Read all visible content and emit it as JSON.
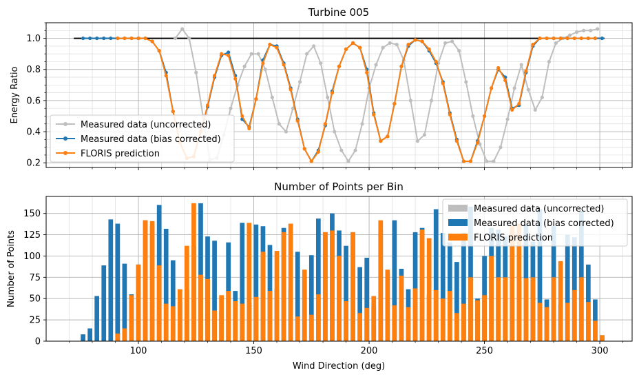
{
  "chart_data": [
    {
      "type": "line",
      "title": "Turbine 005",
      "xlabel": "",
      "ylabel": "Energy Ratio",
      "xlim": [
        60,
        314
      ],
      "ylim": [
        0.17,
        1.1
      ],
      "x_ticks": [
        100,
        150,
        200,
        250,
        300
      ],
      "x_tick_labels": [
        "",
        "",
        "",
        "",
        ""
      ],
      "y_ticks": [
        0.2,
        0.4,
        0.6,
        0.8,
        1.0
      ],
      "y_tick_labels": [
        "0.2",
        "0.4",
        "0.6",
        "0.8",
        "1.0"
      ],
      "grid": true,
      "legend_position": "lower-left",
      "reference_line": {
        "y": 1.0,
        "x_start": 72,
        "x_end": 302,
        "color": "#000000"
      },
      "series": [
        {
          "name": "Measured data (uncorrected)",
          "color": "#bebebe",
          "x": [
            116,
            119,
            122,
            125,
            128,
            131,
            134,
            137,
            140,
            143,
            146,
            149,
            152,
            155,
            158,
            161,
            164,
            167,
            170,
            173,
            176,
            179,
            182,
            185,
            188,
            191,
            194,
            197,
            200,
            203,
            206,
            209,
            212,
            215,
            218,
            221,
            224,
            227,
            230,
            233,
            236,
            239,
            242,
            245,
            248,
            251,
            254,
            257,
            260,
            263,
            266,
            269,
            272,
            275,
            278,
            281,
            284,
            287,
            290,
            293,
            296,
            299
          ],
          "y": [
            1.0,
            1.06,
            1.0,
            0.78,
            0.5,
            0.22,
            0.23,
            0.38,
            0.55,
            0.7,
            0.82,
            0.9,
            0.9,
            0.8,
            0.62,
            0.45,
            0.4,
            0.55,
            0.72,
            0.9,
            0.95,
            0.84,
            0.62,
            0.4,
            0.28,
            0.21,
            0.28,
            0.45,
            0.68,
            0.83,
            0.94,
            0.97,
            0.96,
            0.86,
            0.6,
            0.34,
            0.38,
            0.6,
            0.84,
            0.97,
            0.98,
            0.92,
            0.72,
            0.5,
            0.32,
            0.21,
            0.21,
            0.3,
            0.48,
            0.68,
            0.83,
            0.67,
            0.54,
            0.62,
            0.85,
            0.97,
            1.0,
            1.02,
            1.04,
            1.05,
            1.05,
            1.06
          ]
        },
        {
          "name": "Measured data (bias corrected)",
          "color": "#1f77b4",
          "x": [
            76,
            79,
            82,
            85,
            88,
            91,
            94,
            97,
            100,
            103,
            106,
            109,
            112,
            115,
            118,
            121,
            124,
            127,
            130,
            133,
            136,
            139,
            142,
            145,
            148,
            151,
            154,
            157,
            160,
            163,
            166,
            169,
            172,
            175,
            178,
            181,
            184,
            187,
            190,
            193,
            196,
            199,
            202,
            205,
            208,
            211,
            214,
            217,
            220,
            223,
            226,
            229,
            232,
            235,
            238,
            241,
            244,
            247,
            250,
            253,
            256,
            259,
            262,
            265,
            268,
            271,
            274,
            277,
            280,
            283,
            286,
            289,
            292,
            295,
            298,
            301
          ],
          "y": [
            1.0,
            1.0,
            1.0,
            1.0,
            1.0,
            1.0,
            1.0,
            1.0,
            1.0,
            1.0,
            0.98,
            0.92,
            0.78,
            0.53,
            0.33,
            0.23,
            0.24,
            0.4,
            0.56,
            0.75,
            0.89,
            0.91,
            0.76,
            0.48,
            0.43,
            0.61,
            0.86,
            0.96,
            0.95,
            0.84,
            0.68,
            0.48,
            0.29,
            0.21,
            0.28,
            0.44,
            0.66,
            0.82,
            0.93,
            0.97,
            0.94,
            0.8,
            0.52,
            0.34,
            0.37,
            0.58,
            0.82,
            0.95,
            0.99,
            0.98,
            0.92,
            0.84,
            0.72,
            0.52,
            0.35,
            0.21,
            0.21,
            0.34,
            0.5,
            0.68,
            0.8,
            0.75,
            0.55,
            0.57,
            0.78,
            0.95,
            1.0,
            1.0,
            1.0,
            1.0,
            1.0,
            1.0,
            1.0,
            1.0,
            1.0,
            1.0
          ]
        },
        {
          "name": "FLORIS prediction",
          "color": "#ff7f0e",
          "x": [
            91,
            94,
            97,
            100,
            103,
            106,
            109,
            112,
            115,
            118,
            121,
            124,
            127,
            130,
            133,
            136,
            139,
            142,
            145,
            148,
            151,
            154,
            157,
            160,
            163,
            166,
            169,
            172,
            175,
            178,
            181,
            184,
            187,
            190,
            193,
            196,
            199,
            202,
            205,
            208,
            211,
            214,
            217,
            220,
            223,
            226,
            229,
            232,
            235,
            238,
            241,
            244,
            247,
            250,
            253,
            256,
            259,
            262,
            265,
            268,
            271,
            274,
            277,
            280,
            283,
            286,
            289,
            292,
            295,
            298
          ],
          "y": [
            1.0,
            1.0,
            1.0,
            1.0,
            1.0,
            0.98,
            0.92,
            0.76,
            0.53,
            0.33,
            0.23,
            0.24,
            0.4,
            0.57,
            0.76,
            0.9,
            0.89,
            0.74,
            0.5,
            0.42,
            0.61,
            0.84,
            0.96,
            0.94,
            0.83,
            0.67,
            0.47,
            0.29,
            0.21,
            0.27,
            0.45,
            0.65,
            0.82,
            0.93,
            0.97,
            0.94,
            0.78,
            0.51,
            0.34,
            0.37,
            0.58,
            0.82,
            0.96,
            0.99,
            0.98,
            0.93,
            0.85,
            0.71,
            0.51,
            0.34,
            0.21,
            0.21,
            0.33,
            0.5,
            0.68,
            0.81,
            0.73,
            0.54,
            0.58,
            0.79,
            0.96,
            1.0,
            1.0,
            1.0,
            1.0,
            1.0,
            1.0,
            1.0,
            1.0,
            1.0
          ]
        }
      ]
    },
    {
      "type": "bar",
      "title": "Number of Points per Bin",
      "xlabel": "Wind Direction (deg)",
      "ylabel": "Number of Points",
      "xlim": [
        60,
        314
      ],
      "ylim": [
        0,
        170
      ],
      "x_ticks": [
        100,
        150,
        200,
        250,
        300
      ],
      "x_tick_labels": [
        "100",
        "150",
        "200",
        "250",
        "300"
      ],
      "y_ticks": [
        0,
        25,
        50,
        75,
        100,
        125,
        150
      ],
      "y_tick_labels": [
        "0",
        "25",
        "50",
        "75",
        "100",
        "125",
        "150"
      ],
      "grid": true,
      "legend_position": "top-right",
      "bar_width_deg": 2,
      "series": [
        {
          "name": "Measured data (uncorrected)",
          "color": "#bebebe",
          "x": [],
          "values": []
        },
        {
          "name": "Measured data (bias corrected)",
          "color": "#1f77b4",
          "x": [
            76,
            79,
            82,
            85,
            88,
            91,
            94,
            97,
            100,
            103,
            106,
            109,
            112,
            115,
            118,
            121,
            124,
            127,
            130,
            133,
            136,
            139,
            142,
            145,
            148,
            151,
            154,
            157,
            160,
            163,
            166,
            169,
            172,
            175,
            178,
            181,
            184,
            187,
            190,
            193,
            196,
            199,
            202,
            205,
            208,
            211,
            214,
            217,
            220,
            223,
            226,
            229,
            232,
            235,
            238,
            241,
            244,
            247,
            250,
            253,
            256,
            259,
            262,
            265,
            268,
            271,
            274,
            277,
            280,
            283,
            286,
            289,
            292,
            295,
            298,
            301
          ],
          "values": [
            8,
            15,
            53,
            89,
            143,
            138,
            91,
            55,
            90,
            142,
            135,
            160,
            132,
            95,
            46,
            61,
            112,
            162,
            123,
            118,
            36,
            116,
            59,
            139,
            45,
            137,
            135,
            113,
            62,
            133,
            61,
            105,
            75,
            101,
            144,
            128,
            150,
            130,
            112,
            128,
            87,
            98,
            42,
            130,
            80,
            142,
            85,
            61,
            128,
            133,
            55,
            155,
            127,
            116,
            93,
            127,
            158,
            50,
            100,
            133,
            131,
            123,
            49,
            75,
            137,
            117,
            155,
            49,
            135,
            43,
            125,
            122,
            153,
            90,
            49,
            7
          ]
        },
        {
          "name": "FLORIS prediction",
          "color": "#ff7f0e",
          "x": [
            91,
            94,
            97,
            100,
            103,
            106,
            109,
            112,
            115,
            118,
            121,
            124,
            127,
            130,
            133,
            136,
            139,
            142,
            145,
            148,
            151,
            154,
            157,
            160,
            163,
            166,
            169,
            172,
            175,
            178,
            181,
            184,
            187,
            190,
            193,
            196,
            199,
            202,
            205,
            208,
            211,
            214,
            217,
            220,
            223,
            226,
            229,
            232,
            235,
            238,
            241,
            244,
            247,
            250,
            253,
            256,
            259,
            262,
            265,
            268,
            271,
            274,
            277,
            280,
            283,
            286,
            289,
            292,
            295,
            298,
            301
          ],
          "values": [
            9,
            15,
            54,
            90,
            142,
            141,
            89,
            44,
            41,
            61,
            112,
            162,
            78,
            73,
            36,
            54,
            59,
            47,
            44,
            139,
            52,
            105,
            59,
            106,
            128,
            138,
            29,
            84,
            31,
            55,
            128,
            130,
            100,
            47,
            128,
            33,
            39,
            53,
            142,
            84,
            42,
            77,
            40,
            62,
            131,
            121,
            60,
            50,
            59,
            33,
            44,
            75,
            48,
            54,
            100,
            75,
            75,
            135,
            138,
            74,
            75,
            45,
            40,
            75,
            94,
            45,
            60,
            75,
            46,
            24,
            7
          ]
        }
      ]
    }
  ]
}
